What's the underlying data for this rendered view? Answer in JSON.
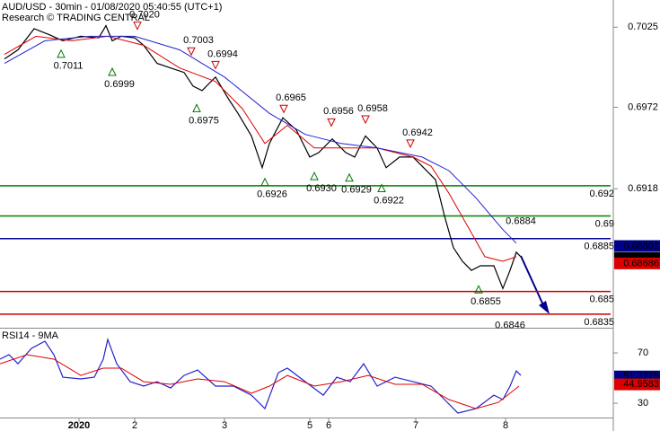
{
  "chart_data": [
    {
      "type": "line",
      "title": "AUD/USD - 30min - 01/08/2020 05:40:55 (UTC+1)",
      "subtitle": "Research © TRADING CENTRAL",
      "xlim": [
        0,
        680
      ],
      "ylim": [
        0.6826,
        0.7043
      ],
      "yticks": [
        0.7025,
        0.6972,
        0.6918
      ],
      "series": [
        {
          "color": "#000000",
          "x": [
            5,
            20,
            38,
            55,
            70,
            90,
            110,
            118,
            125,
            135,
            150,
            160,
            175,
            190,
            205,
            215,
            225,
            240,
            255,
            265,
            280,
            292,
            300,
            315,
            330,
            345,
            355,
            370,
            385,
            395,
            407,
            420,
            430,
            445,
            460,
            475,
            485,
            495,
            505,
            515,
            525,
            535,
            550,
            560,
            568,
            575,
            580
          ],
          "values": [
            0.7004,
            0.701,
            0.7024,
            0.702,
            0.7016,
            0.7019,
            0.7018,
            0.7026,
            0.7016,
            0.7019,
            0.7018,
            0.7013,
            0.7001,
            0.6998,
            0.6995,
            0.6986,
            0.6983,
            0.6992,
            0.6977,
            0.6968,
            0.6953,
            0.6932,
            0.6948,
            0.6965,
            0.6957,
            0.6939,
            0.6942,
            0.6951,
            0.6942,
            0.6939,
            0.6953,
            0.6945,
            0.6932,
            0.6939,
            0.6939,
            0.693,
            0.6924,
            0.69,
            0.6879,
            0.687,
            0.6864,
            0.6867,
            0.6867,
            0.6852,
            0.6864,
            0.6876,
            0.6873
          ]
        },
        {
          "color": "#dd0000",
          "x": [
            5,
            40,
            80,
            120,
            160,
            200,
            240,
            270,
            295,
            320,
            350,
            390,
            420,
            460,
            480,
            500,
            520,
            540,
            560,
            575
          ],
          "values": [
            0.7007,
            0.7019,
            0.7016,
            0.7019,
            0.7013,
            0.6998,
            0.6989,
            0.6971,
            0.6948,
            0.696,
            0.6945,
            0.6945,
            0.6945,
            0.6939,
            0.6933,
            0.6915,
            0.6894,
            0.6873,
            0.687,
            0.6873
          ]
        },
        {
          "color": "#2222cc",
          "x": [
            5,
            50,
            100,
            150,
            200,
            250,
            300,
            340,
            380,
            420,
            470,
            500,
            530,
            560,
            575
          ],
          "values": [
            0.7001,
            0.7016,
            0.7019,
            0.7019,
            0.701,
            0.6992,
            0.6968,
            0.6954,
            0.6948,
            0.6945,
            0.6939,
            0.693,
            0.6912,
            0.6891,
            0.6882
          ]
        }
      ],
      "levels": [
        {
          "value": 0.692,
          "color": "#008000"
        },
        {
          "value": 0.69,
          "color": "#008000"
        },
        {
          "value": 0.6885,
          "color": "#00008b"
        },
        {
          "value": 0.685,
          "color": "#cc0000"
        },
        {
          "value": 0.6835,
          "color": "#cc0000"
        }
      ],
      "annotations": [
        {
          "x": 153,
          "value": 0.702,
          "label": "0.7020",
          "marker": "high"
        },
        {
          "x": 68,
          "value": 0.7011,
          "marker": "low"
        },
        {
          "x": 125,
          "value": 0.6999,
          "marker": "low"
        },
        {
          "x": 213,
          "value": 0.7003,
          "marker": "high"
        },
        {
          "x": 240,
          "value": 0.6994,
          "marker": "high"
        },
        {
          "x": 219,
          "value": 0.6975,
          "marker": "low"
        },
        {
          "x": 316,
          "value": 0.6965,
          "marker": "high"
        },
        {
          "x": 295,
          "value": 0.6926,
          "marker": "low"
        },
        {
          "x": 369,
          "value": 0.6956,
          "marker": "high"
        },
        {
          "x": 407,
          "value": 0.6958,
          "marker": "high"
        },
        {
          "x": 350,
          "value": 0.693,
          "label": "0.6930",
          "marker": "low"
        },
        {
          "x": 389,
          "value": 0.6929,
          "marker": "low"
        },
        {
          "x": 425,
          "value": 0.6922,
          "marker": "low"
        },
        {
          "x": 457,
          "value": 0.6942,
          "marker": "high"
        },
        {
          "x": 572,
          "value": 0.6884,
          "marker": "high-plain"
        },
        {
          "x": 533,
          "value": 0.6855,
          "marker": "low"
        },
        {
          "x": 560,
          "value": 0.6846,
          "marker": "low-plain"
        }
      ],
      "price_boxes": [
        {
          "value": 0.68801,
          "color": "#00008b"
        },
        {
          "value": 0.68721,
          "color": "#000000"
        },
        {
          "value": 0.68686,
          "color": "#dd0000"
        }
      ]
    },
    {
      "type": "line",
      "title": "RSI14 - 9MA",
      "xlim": [
        0,
        680
      ],
      "ylim": [
        18.6,
        88.6
      ],
      "yticks": [
        70,
        30
      ],
      "xticks": [
        {
          "value": 88,
          "label": "2020"
        },
        {
          "value": 150,
          "label": "2"
        },
        {
          "value": 250,
          "label": "3"
        },
        {
          "value": 345,
          "label": "5"
        },
        {
          "value": 366,
          "label": "6"
        },
        {
          "value": 463,
          "label": "7"
        },
        {
          "value": 563,
          "label": "8"
        }
      ],
      "series": [
        {
          "color": "#2222cc",
          "x": [
            0,
            10,
            20,
            35,
            50,
            60,
            70,
            90,
            105,
            115,
            120,
            130,
            145,
            160,
            175,
            190,
            205,
            220,
            240,
            260,
            280,
            295,
            310,
            320,
            340,
            360,
            375,
            390,
            405,
            420,
            440,
            460,
            480,
            495,
            510,
            530,
            550,
            560,
            568,
            575,
            580
          ],
          "values": [
            65,
            68.6,
            61.4,
            73.6,
            79.3,
            68.6,
            50.7,
            49.3,
            50.7,
            65,
            80.7,
            61.4,
            47.1,
            43.6,
            47.1,
            42.1,
            52.1,
            56.4,
            43.6,
            43.6,
            36.4,
            25.7,
            54.3,
            57.9,
            47.1,
            36.4,
            50.7,
            47.1,
            61.4,
            43.6,
            50.7,
            47.1,
            43.6,
            32.9,
            22.1,
            25.7,
            36.4,
            32.9,
            43.6,
            55.7,
            52.1
          ]
        },
        {
          "color": "#dd0000",
          "x": [
            0,
            30,
            60,
            90,
            115,
            135,
            160,
            190,
            220,
            250,
            280,
            300,
            320,
            350,
            380,
            410,
            440,
            470,
            500,
            530,
            555,
            578
          ],
          "values": [
            61.4,
            68.6,
            65,
            52.1,
            57.9,
            57.9,
            47.1,
            45,
            49.3,
            47.1,
            37.9,
            43.6,
            52.1,
            43.6,
            47.1,
            52.1,
            45,
            45,
            32.9,
            25.7,
            30.7,
            43.6
          ]
        }
      ],
      "value_boxes": [
        {
          "value": 51.2775,
          "color": "#00008b"
        },
        {
          "value": 44.9583,
          "color": "#dd0000"
        }
      ]
    }
  ]
}
